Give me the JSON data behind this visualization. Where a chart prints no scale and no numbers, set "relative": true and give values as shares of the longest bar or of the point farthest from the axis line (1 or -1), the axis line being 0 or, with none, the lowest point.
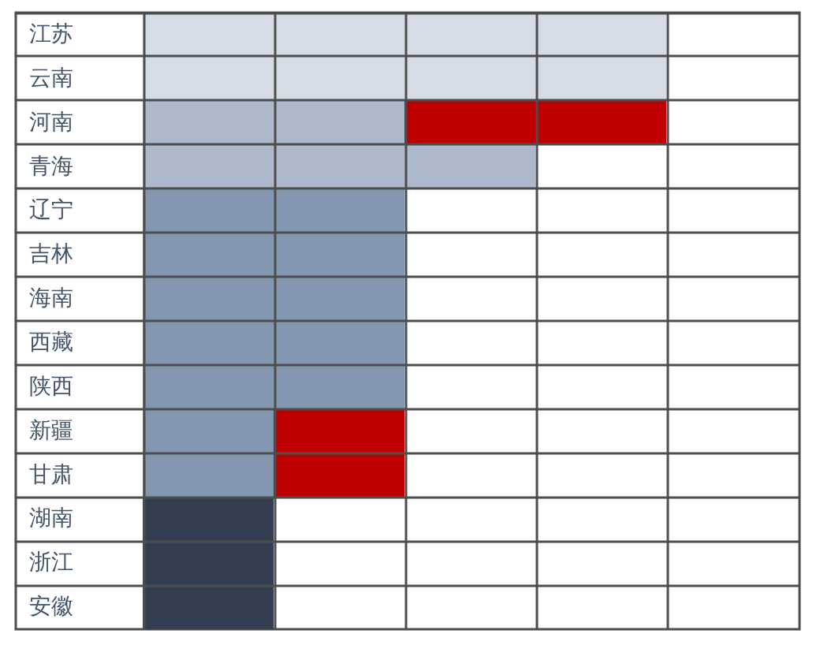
{
  "chart_data": {
    "type": "bar",
    "orientation": "horizontal",
    "stacked": true,
    "relative": true,
    "grid": true,
    "categories": [
      "江苏",
      "云南",
      "河南",
      "青海",
      "辽宁",
      "吉林",
      "海南",
      "西藏",
      "陕西",
      "新疆",
      "甘肃",
      "湖南",
      "浙江",
      "安徽"
    ],
    "series": [
      {
        "colors": [
          "#d6dce5",
          "#d6dce5",
          "#adb9ca",
          "#adb9ca",
          "#8497b0",
          "#8497b0",
          "#8497b0",
          "#8497b0",
          "#8497b0",
          "#8497b0",
          "#8497b0",
          "#333f50",
          "#333f50",
          "#333f50"
        ],
        "values": [
          1,
          1,
          0.5,
          0.75,
          0.5,
          0.5,
          0.5,
          0.5,
          0.5,
          0.25,
          0.25,
          0.25,
          0.25,
          0.25
        ]
      },
      {
        "color": "#c00000",
        "values": [
          null,
          null,
          0.5,
          null,
          null,
          null,
          null,
          null,
          null,
          0.25,
          0.25,
          null,
          null,
          null
        ]
      }
    ]
  }
}
